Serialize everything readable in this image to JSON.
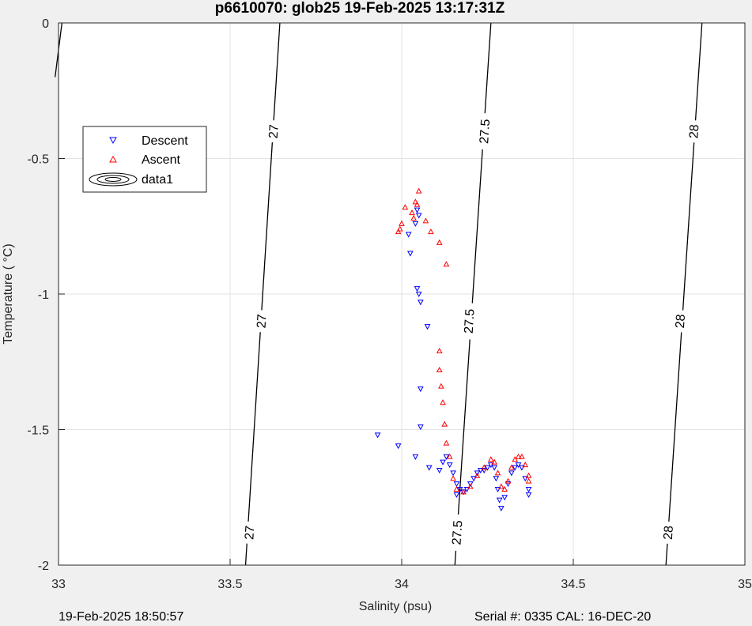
{
  "chart_data": {
    "type": "scatter",
    "title": "p6610070: glob25 19-Feb-2025 13:17:31Z",
    "xlabel": "Salinity (psu)",
    "ylabel": "Temperature (   °C)",
    "xlim": [
      33,
      35
    ],
    "ylim": [
      -2,
      0
    ],
    "x_ticks": [
      33,
      33.5,
      34,
      34.5,
      35
    ],
    "x_tick_labels": [
      "33",
      "33.5",
      "34",
      "34.5",
      "35"
    ],
    "y_ticks": [
      0,
      -0.5,
      -1,
      -1.5,
      -2
    ],
    "y_tick_labels": [
      "0",
      "-0.5",
      "-1",
      "-1.5",
      "-2"
    ],
    "grid": true,
    "legend_position": "top-left",
    "legend": [
      "Descent",
      "Ascent",
      "data1"
    ],
    "contours": [
      {
        "level_label": "27",
        "points": [
          [
            33.545,
            -2
          ],
          [
            33.645,
            0
          ]
        ],
        "label_positions": [
          [
            33.625,
            -0.4
          ],
          [
            33.59,
            -1.1
          ],
          [
            33.555,
            -1.88
          ]
        ]
      },
      {
        "level_label": "27.5",
        "points": [
          [
            34.155,
            -2
          ],
          [
            34.26,
            0
          ]
        ],
        "label_positions": [
          [
            34.24,
            -0.4
          ],
          [
            34.195,
            -1.1
          ],
          [
            34.16,
            -1.88
          ]
        ]
      },
      {
        "level_label": "28",
        "points": [
          [
            34.77,
            -2
          ],
          [
            34.875,
            0
          ]
        ],
        "label_positions": [
          [
            34.85,
            -0.4
          ],
          [
            34.81,
            -1.1
          ],
          [
            34.775,
            -1.88
          ]
        ]
      },
      {
        "level_label": "",
        "points": [
          [
            32.99,
            -0.2
          ],
          [
            33.01,
            0
          ]
        ],
        "label_positions": []
      }
    ],
    "series": [
      {
        "name": "Descent",
        "color": "#0000ff",
        "marker": "triangle-down",
        "points": [
          [
            33.93,
            -1.52
          ],
          [
            33.99,
            -1.56
          ],
          [
            34.04,
            -1.6
          ],
          [
            34.08,
            -1.64
          ],
          [
            34.11,
            -1.65
          ],
          [
            34.12,
            -1.62
          ],
          [
            34.13,
            -1.6
          ],
          [
            34.14,
            -1.63
          ],
          [
            34.15,
            -1.66
          ],
          [
            34.16,
            -1.7
          ],
          [
            34.17,
            -1.72
          ],
          [
            34.18,
            -1.73
          ],
          [
            34.19,
            -1.72
          ],
          [
            34.2,
            -1.7
          ],
          [
            34.21,
            -1.68
          ],
          [
            34.22,
            -1.66
          ],
          [
            34.23,
            -1.65
          ],
          [
            34.24,
            -1.65
          ],
          [
            34.25,
            -1.64
          ],
          [
            34.26,
            -1.63
          ],
          [
            34.27,
            -1.64
          ],
          [
            34.275,
            -1.68
          ],
          [
            34.28,
            -1.72
          ],
          [
            34.285,
            -1.76
          ],
          [
            34.29,
            -1.79
          ],
          [
            34.3,
            -1.75
          ],
          [
            34.31,
            -1.7
          ],
          [
            34.32,
            -1.66
          ],
          [
            34.33,
            -1.64
          ],
          [
            34.34,
            -1.63
          ],
          [
            34.35,
            -1.64
          ],
          [
            34.36,
            -1.68
          ],
          [
            34.37,
            -1.72
          ],
          [
            34.37,
            -1.74
          ],
          [
            34.16,
            -1.74
          ],
          [
            34.05,
            -0.71
          ],
          [
            34.045,
            -0.69
          ],
          [
            34.04,
            -0.74
          ],
          [
            34.02,
            -0.78
          ],
          [
            34.025,
            -0.85
          ],
          [
            34.045,
            -0.98
          ],
          [
            34.05,
            -1.0
          ],
          [
            34.055,
            -1.03
          ],
          [
            34.075,
            -1.12
          ],
          [
            34.055,
            -1.35
          ],
          [
            34.055,
            -1.49
          ]
        ]
      },
      {
        "name": "Ascent",
        "color": "#ff0000",
        "marker": "triangle-up",
        "points": [
          [
            34.05,
            -0.62
          ],
          [
            34.04,
            -0.66
          ],
          [
            34.045,
            -0.67
          ],
          [
            34.01,
            -0.68
          ],
          [
            34.03,
            -0.7
          ],
          [
            34.0,
            -0.74
          ],
          [
            33.995,
            -0.76
          ],
          [
            33.99,
            -0.77
          ],
          [
            34.035,
            -0.72
          ],
          [
            34.07,
            -0.73
          ],
          [
            34.085,
            -0.77
          ],
          [
            34.11,
            -0.81
          ],
          [
            34.13,
            -0.89
          ],
          [
            34.11,
            -1.21
          ],
          [
            34.11,
            -1.28
          ],
          [
            34.115,
            -1.34
          ],
          [
            34.12,
            -1.4
          ],
          [
            34.125,
            -1.48
          ],
          [
            34.13,
            -1.55
          ],
          [
            34.14,
            -1.6
          ],
          [
            34.15,
            -1.68
          ],
          [
            34.16,
            -1.72
          ],
          [
            34.18,
            -1.73
          ],
          [
            34.2,
            -1.71
          ],
          [
            34.22,
            -1.67
          ],
          [
            34.24,
            -1.64
          ],
          [
            34.26,
            -1.61
          ],
          [
            34.27,
            -1.62
          ],
          [
            34.28,
            -1.66
          ],
          [
            34.29,
            -1.71
          ],
          [
            34.3,
            -1.72
          ],
          [
            34.31,
            -1.69
          ],
          [
            34.32,
            -1.64
          ],
          [
            34.33,
            -1.61
          ],
          [
            34.34,
            -1.6
          ],
          [
            34.35,
            -1.6
          ],
          [
            34.36,
            -1.63
          ],
          [
            34.37,
            -1.67
          ],
          [
            34.37,
            -1.69
          ]
        ]
      }
    ]
  },
  "footer": {
    "left": "19-Feb-2025 18:50:57",
    "right": "Serial #: 0335  CAL: 16-DEC-20"
  }
}
